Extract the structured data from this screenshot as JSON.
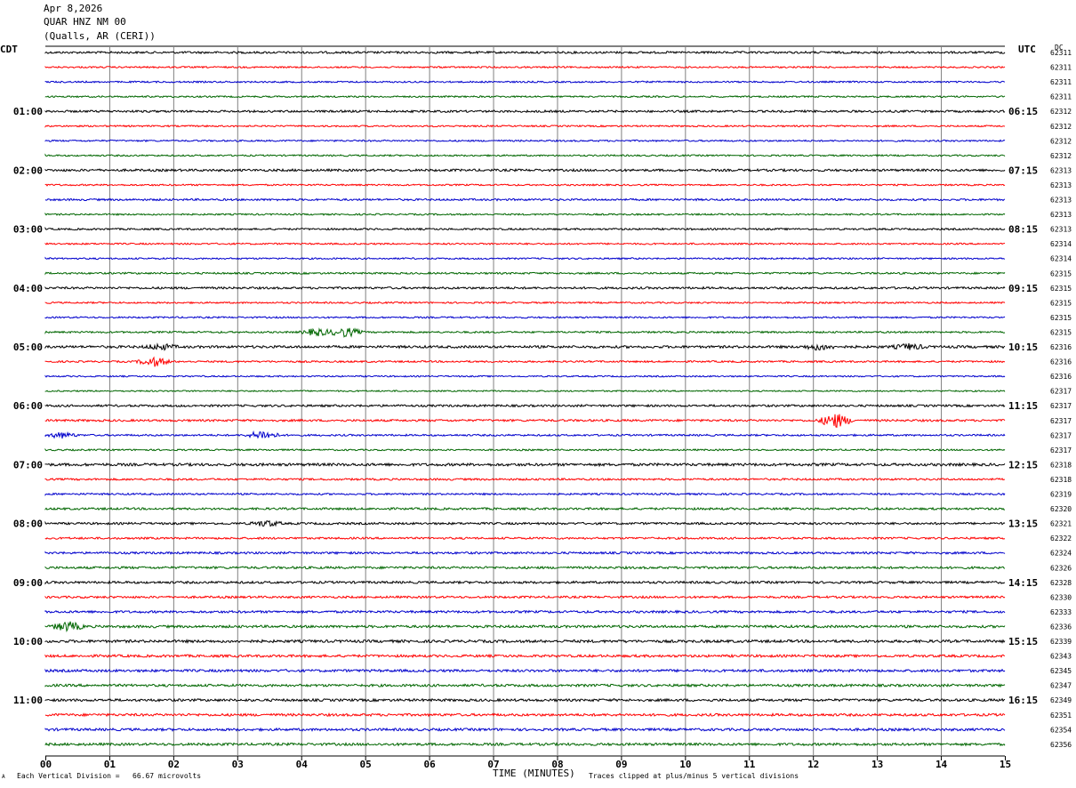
{
  "header": {
    "date": "Apr 8,2026",
    "station": "QUAR HNZ NM 00",
    "location": "(Qualls, AR (CERI))"
  },
  "left_zone_label": "CDT",
  "right_zone_label": "UTC",
  "dc_label": "DC",
  "footer": {
    "scale_note": "Each Vertical Division =   66.67 microvolts",
    "clip_note": "Traces clipped at plus/minus 5 vertical divisions",
    "corner_mark": "A"
  },
  "colors": {
    "trace_cycle": [
      "#000000",
      "#ff0000",
      "#0000cc",
      "#006600"
    ],
    "grid": "#808080"
  },
  "chart_data": {
    "type": "line",
    "xlabel": "TIME (MINUTES)",
    "xlim": [
      0,
      15
    ],
    "x_ticks": [
      "00",
      "01",
      "02",
      "03",
      "04",
      "05",
      "06",
      "07",
      "08",
      "09",
      "10",
      "11",
      "12",
      "13",
      "14",
      "15"
    ],
    "traces_per_hour": 4,
    "trace_minutes": 15,
    "left_time_labels": [
      "01:00",
      "02:00",
      "03:00",
      "04:00",
      "05:00",
      "06:00",
      "07:00",
      "08:00",
      "09:00",
      "10:00",
      "11:00"
    ],
    "right_time_labels": [
      "06:15",
      "07:15",
      "08:15",
      "09:15",
      "10:15",
      "11:15",
      "12:15",
      "13:15",
      "14:15",
      "15:15",
      "16:15"
    ],
    "dc_values": [
      62311,
      62311,
      62311,
      62311,
      62312,
      62312,
      62312,
      62312,
      62313,
      62313,
      62313,
      62313,
      62313,
      62314,
      62314,
      62315,
      62315,
      62315,
      62315,
      62315,
      62316,
      62316,
      62316,
      62317,
      62317,
      62317,
      62317,
      62317,
      62318,
      62318,
      62319,
      62320,
      62321,
      62322,
      62324,
      62326,
      62328,
      62330,
      62333,
      62336,
      62339,
      62343,
      62345,
      62347,
      62349,
      62351,
      62354,
      62356
    ],
    "noise_amplitude": [
      1.2,
      0.9,
      0.9,
      0.9,
      1.2,
      0.9,
      0.9,
      0.9,
      1.3,
      0.9,
      1.1,
      0.9,
      1.0,
      0.9,
      0.9,
      1.0,
      1.2,
      0.9,
      0.9,
      1.0,
      1.4,
      1.0,
      0.8,
      0.8,
      1.2,
      1.2,
      1.0,
      0.9,
      1.5,
      1.1,
      1.0,
      1.2,
      1.2,
      1.1,
      1.2,
      1.3,
      1.3,
      1.2,
      1.3,
      1.4,
      1.5,
      1.4,
      1.4,
      1.4,
      1.4,
      1.4,
      1.4,
      1.4
    ],
    "events": [
      {
        "trace": 19,
        "minute": 4.25,
        "amplitude": 4
      },
      {
        "trace": 19,
        "minute": 4.7,
        "amplitude": 5
      },
      {
        "trace": 20,
        "minute": 1.8,
        "amplitude": 3
      },
      {
        "trace": 20,
        "minute": 12.1,
        "amplitude": 3
      },
      {
        "trace": 20,
        "minute": 13.5,
        "amplitude": 3
      },
      {
        "trace": 21,
        "minute": 1.7,
        "amplitude": 5
      },
      {
        "trace": 25,
        "minute": 12.35,
        "amplitude": 8
      },
      {
        "trace": 26,
        "minute": 3.4,
        "amplitude": 5
      },
      {
        "trace": 26,
        "minute": 0.25,
        "amplitude": 3
      },
      {
        "trace": 32,
        "minute": 3.45,
        "amplitude": 3
      },
      {
        "trace": 39,
        "minute": 0.35,
        "amplitude": 5
      }
    ]
  }
}
